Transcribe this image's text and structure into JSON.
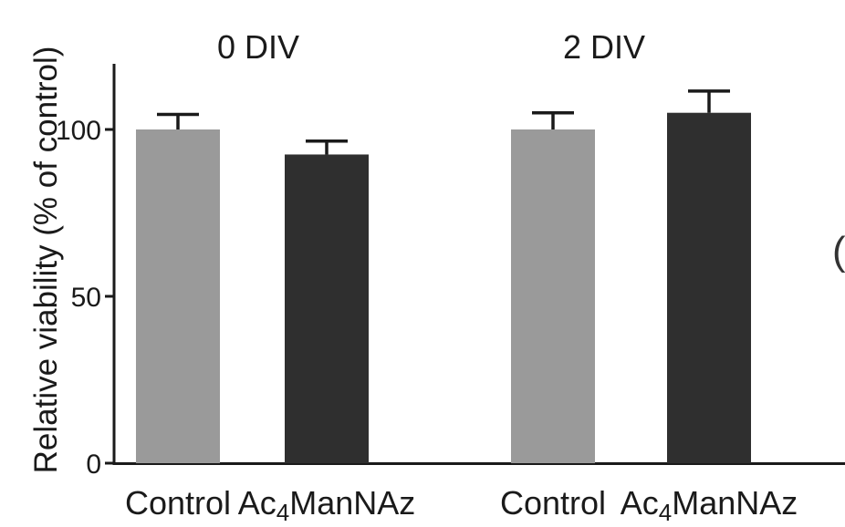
{
  "chart_data": {
    "type": "bar",
    "ylabel": "Relative viability (% of control)",
    "ylim": [
      0,
      120
    ],
    "yticks": [
      0,
      50,
      100
    ],
    "groups": [
      {
        "label": "0 DIV",
        "bars": [
          {
            "category": "Control",
            "value": 100,
            "error": 4.5,
            "color": "#9a9a9a"
          },
          {
            "category": "Ac4ManNAz",
            "value": 92.5,
            "error": 4,
            "color": "#2f2f2f"
          }
        ]
      },
      {
        "label": "2 DIV",
        "bars": [
          {
            "category": "Control",
            "value": 100,
            "error": 5,
            "color": "#9a9a9a"
          },
          {
            "category": "Ac4ManNAz",
            "value": 105,
            "error": 6.5,
            "color": "#2f2f2f"
          }
        ]
      }
    ],
    "cut_off_text": "("
  }
}
